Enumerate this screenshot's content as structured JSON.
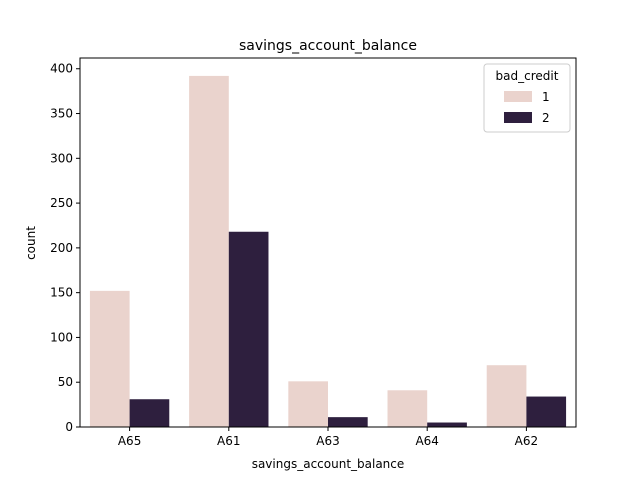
{
  "chart_data": {
    "type": "bar",
    "title": "savings_account_balance",
    "xlabel": "savings_account_balance",
    "ylabel": "count",
    "categories": [
      "A65",
      "A61",
      "A63",
      "A64",
      "A62"
    ],
    "series": [
      {
        "name": "1",
        "values": [
          152,
          392,
          51,
          41,
          69
        ],
        "color": "#ead3cd"
      },
      {
        "name": "2",
        "values": [
          31,
          218,
          11,
          5,
          34
        ],
        "color": "#2e1f3e"
      }
    ],
    "legend": {
      "title": "bad_credit",
      "position": "top-right"
    },
    "ylim": [
      0,
      412
    ],
    "yticks": [
      0,
      50,
      100,
      150,
      200,
      250,
      300,
      350,
      400
    ],
    "grid": false
  }
}
